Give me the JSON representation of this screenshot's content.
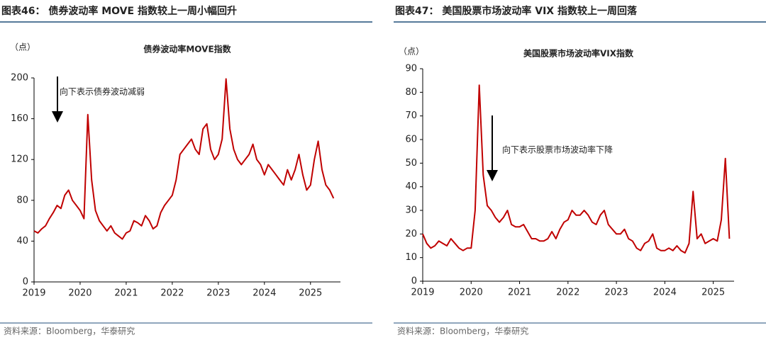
{
  "chart_data": [
    {
      "type": "line",
      "heading": "图表46：  债券波动率 MOVE 指数较上一周小幅回升",
      "title": "债券波动率MOVE指数",
      "ylabel": "（点）",
      "annotation": "向下表示债券波动减弱",
      "source": "资料来源：Bloomberg，华泰研究",
      "xlim": [
        2019,
        2025.65
      ],
      "xticks": [
        2019,
        2020,
        2021,
        2022,
        2023,
        2024,
        2025
      ],
      "ylim": [
        0,
        200
      ],
      "yticks": [
        0,
        40,
        80,
        120,
        160,
        200
      ],
      "x": [
        2019.0,
        2019.083,
        2019.167,
        2019.25,
        2019.333,
        2019.417,
        2019.5,
        2019.583,
        2019.667,
        2019.75,
        2019.833,
        2019.917,
        2020.0,
        2020.083,
        2020.167,
        2020.25,
        2020.333,
        2020.417,
        2020.5,
        2020.583,
        2020.667,
        2020.75,
        2020.833,
        2020.917,
        2021.0,
        2021.083,
        2021.167,
        2021.25,
        2021.333,
        2021.417,
        2021.5,
        2021.583,
        2021.667,
        2021.75,
        2021.833,
        2021.917,
        2022.0,
        2022.083,
        2022.167,
        2022.25,
        2022.333,
        2022.417,
        2022.5,
        2022.583,
        2022.667,
        2022.75,
        2022.833,
        2022.917,
        2023.0,
        2023.083,
        2023.167,
        2023.25,
        2023.333,
        2023.417,
        2023.5,
        2023.583,
        2023.667,
        2023.75,
        2023.833,
        2023.917,
        2024.0,
        2024.083,
        2024.167,
        2024.25,
        2024.333,
        2024.417,
        2024.5,
        2024.583,
        2024.667,
        2024.75,
        2024.833,
        2024.917,
        2025.0,
        2025.083,
        2025.167,
        2025.25,
        2025.333,
        2025.417,
        2025.5
      ],
      "series": [
        {
          "name": "MOVE",
          "color": "#c00000",
          "values": [
            50,
            48,
            52,
            55,
            62,
            68,
            75,
            72,
            85,
            90,
            80,
            75,
            70,
            62,
            164,
            100,
            70,
            60,
            55,
            50,
            55,
            48,
            45,
            42,
            48,
            50,
            60,
            58,
            55,
            65,
            60,
            52,
            55,
            68,
            75,
            80,
            85,
            100,
            125,
            130,
            135,
            140,
            130,
            125,
            150,
            155,
            130,
            120,
            125,
            140,
            199,
            150,
            130,
            120,
            115,
            120,
            125,
            135,
            120,
            115,
            105,
            115,
            110,
            105,
            100,
            95,
            110,
            100,
            110,
            125,
            105,
            90,
            95,
            120,
            138,
            110,
            95,
            90,
            82
          ]
        }
      ]
    },
    {
      "type": "line",
      "heading": "图表47：  美国股票市场波动率 VIX 指数较上一周回落",
      "title": "美国股票市场波动率VIX指数",
      "ylabel": "（点）",
      "annotation": "向下表示股票市场波动率下降",
      "source": "资料来源：Bloomberg，华泰研究",
      "xlim": [
        2019,
        2025.43
      ],
      "xticks": [
        2019,
        2020,
        2021,
        2022,
        2023,
        2024,
        2025
      ],
      "ylim": [
        0,
        90
      ],
      "yticks": [
        0,
        10,
        20,
        30,
        40,
        50,
        60,
        70,
        80,
        90
      ],
      "x": [
        2019.0,
        2019.083,
        2019.167,
        2019.25,
        2019.333,
        2019.417,
        2019.5,
        2019.583,
        2019.667,
        2019.75,
        2019.833,
        2019.917,
        2020.0,
        2020.083,
        2020.167,
        2020.25,
        2020.333,
        2020.417,
        2020.5,
        2020.583,
        2020.667,
        2020.75,
        2020.833,
        2020.917,
        2021.0,
        2021.083,
        2021.167,
        2021.25,
        2021.333,
        2021.417,
        2021.5,
        2021.583,
        2021.667,
        2021.75,
        2021.833,
        2021.917,
        2022.0,
        2022.083,
        2022.167,
        2022.25,
        2022.333,
        2022.417,
        2022.5,
        2022.583,
        2022.667,
        2022.75,
        2022.833,
        2022.917,
        2023.0,
        2023.083,
        2023.167,
        2023.25,
        2023.333,
        2023.417,
        2023.5,
        2023.583,
        2023.667,
        2023.75,
        2023.833,
        2023.917,
        2024.0,
        2024.083,
        2024.167,
        2024.25,
        2024.333,
        2024.417,
        2024.5,
        2024.583,
        2024.667,
        2024.75,
        2024.833,
        2024.917,
        2025.0,
        2025.083,
        2025.167,
        2025.25,
        2025.333
      ],
      "series": [
        {
          "name": "VIX",
          "color": "#c00000",
          "values": [
            20,
            16,
            14,
            15,
            17,
            16,
            15,
            18,
            16,
            14,
            13,
            14,
            14,
            30,
            83,
            45,
            32,
            30,
            27,
            25,
            27,
            30,
            24,
            23,
            23,
            24,
            21,
            18,
            18,
            17,
            17,
            18,
            21,
            18,
            22,
            25,
            26,
            30,
            28,
            28,
            30,
            28,
            25,
            24,
            28,
            30,
            24,
            22,
            20,
            20,
            22,
            18,
            17,
            14,
            13,
            16,
            17,
            20,
            14,
            13,
            13,
            14,
            13,
            15,
            13,
            12,
            16,
            38,
            18,
            20,
            16,
            17,
            18,
            17,
            26,
            52,
            18
          ]
        }
      ]
    }
  ]
}
